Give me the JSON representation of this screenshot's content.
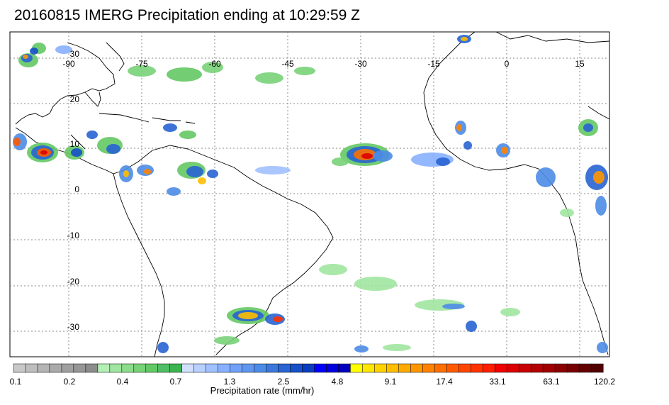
{
  "title": "20160815 IMERG Precipitation ending at 10:29:59 Z",
  "map": {
    "lon_labels": [
      "-90",
      "-75",
      "-60",
      "-45",
      "-30",
      "-15",
      "0",
      "15"
    ],
    "lat_labels": [
      "30",
      "20",
      "10",
      "0",
      "-10",
      "-20",
      "-30"
    ],
    "land_color": "#ffffff",
    "ocean_color": "#ffffff",
    "coast_color": "#000000",
    "grid_color": "#888888"
  },
  "colorbar": {
    "title": "Precipitation rate (mm/hr)",
    "tick_labels": [
      "0.1",
      "0.2",
      "0.4",
      "0.7",
      "1.3",
      "2.5",
      "4.8",
      "9.1",
      "17.4",
      "33.1",
      "63.1",
      "120.2"
    ],
    "colors": [
      "#c8c8c8",
      "#bebebe",
      "#b4b4b4",
      "#aaaaaa",
      "#a0a0a0",
      "#969696",
      "#8c8c8c",
      "#b4f0b4",
      "#a0e6a0",
      "#8cdc8c",
      "#78d278",
      "#64c864",
      "#50be64",
      "#3cb450",
      "#d0e0ff",
      "#b8d0ff",
      "#a0c0ff",
      "#88b0ff",
      "#70a0f8",
      "#6096f0",
      "#4c8ce6",
      "#3c78dc",
      "#2864d2",
      "#1450c8",
      "#0a3cbe",
      "#0000ff",
      "#0000dc",
      "#0000c0",
      "#ffff00",
      "#ffe600",
      "#ffd200",
      "#ffbe00",
      "#ffaa00",
      "#ff9600",
      "#ff8200",
      "#ff6e00",
      "#ff5a00",
      "#ff4600",
      "#ff3200",
      "#ff1e00",
      "#f00000",
      "#dc0000",
      "#c80000",
      "#b40000",
      "#a00000",
      "#8c0000",
      "#780000",
      "#640000",
      "#500000"
    ]
  }
}
